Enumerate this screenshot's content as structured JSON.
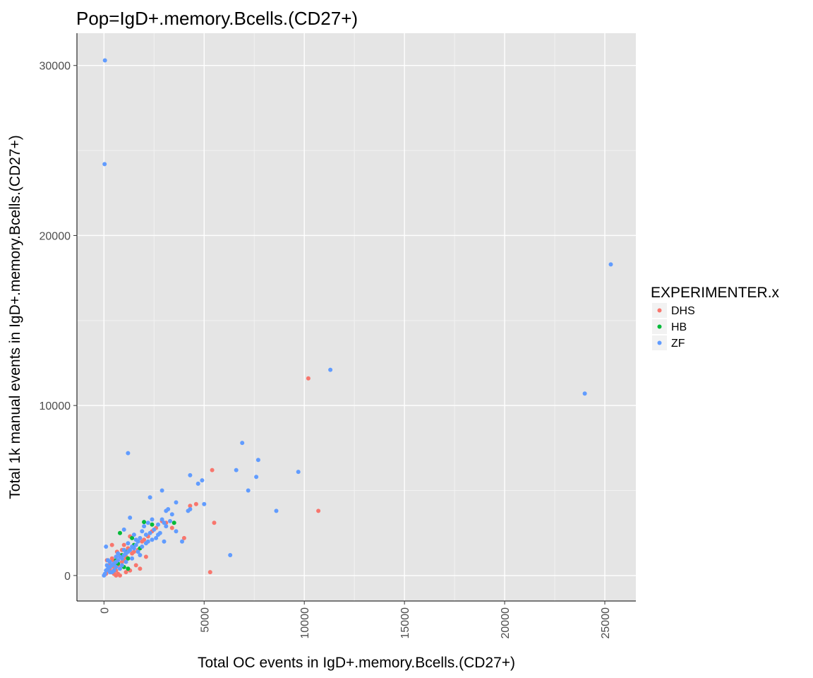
{
  "chart_data": {
    "type": "scatter",
    "title": "Pop=IgD+.memory.Bcells.(CD27+)",
    "xlabel": "Total OC events in IgD+.memory.Bcells.(CD27+)",
    "ylabel": "Total 1k manual events in IgD+.memory.Bcells.(CD27+)",
    "xlim": [
      -1350,
      26550
    ],
    "ylim": [
      -1500,
      31900
    ],
    "x_ticks": [
      0,
      5000,
      10000,
      15000,
      20000,
      25000
    ],
    "x_tick_labels": [
      "0",
      "5000",
      "10000",
      "15000",
      "20000",
      "25000"
    ],
    "y_ticks": [
      0,
      10000,
      20000,
      30000
    ],
    "y_tick_labels": [
      "0",
      "10000",
      "20000",
      "30000"
    ],
    "grid": true,
    "legend": {
      "title": "EXPERIMENTER.x",
      "placement": "right"
    },
    "series": [
      {
        "name": "DHS",
        "color": "#F8766D",
        "points": [
          [
            10200,
            11600
          ],
          [
            10700,
            3800
          ],
          [
            5400,
            6200
          ],
          [
            5500,
            3100
          ],
          [
            5300,
            200
          ],
          [
            4600,
            4200
          ],
          [
            4300,
            4100
          ],
          [
            4000,
            2200
          ],
          [
            3400,
            2800
          ],
          [
            3100,
            3100
          ],
          [
            2900,
            3200
          ],
          [
            2600,
            2800
          ],
          [
            2400,
            2600
          ],
          [
            2200,
            2300
          ],
          [
            2000,
            2100
          ],
          [
            1900,
            2000
          ],
          [
            1700,
            1500
          ],
          [
            1500,
            1400
          ],
          [
            1400,
            1300
          ],
          [
            1300,
            2300
          ],
          [
            1200,
            1600
          ],
          [
            1100,
            1100
          ],
          [
            1000,
            900
          ],
          [
            900,
            800
          ],
          [
            800,
            1200
          ],
          [
            700,
            600
          ],
          [
            650,
            1400
          ],
          [
            600,
            300
          ],
          [
            550,
            700
          ],
          [
            500,
            500
          ],
          [
            450,
            900
          ],
          [
            400,
            1800
          ],
          [
            350,
            200
          ],
          [
            300,
            400
          ],
          [
            250,
            600
          ],
          [
            200,
            300
          ],
          [
            150,
            900
          ],
          [
            100,
            100
          ],
          [
            800,
            0
          ],
          [
            700,
            100
          ],
          [
            600,
            0
          ],
          [
            500,
            100
          ],
          [
            1600,
            600
          ],
          [
            1800,
            400
          ],
          [
            2100,
            1100
          ],
          [
            1300,
            300
          ],
          [
            900,
            1500
          ],
          [
            1100,
            200
          ],
          [
            400,
            1000
          ],
          [
            1000,
            1800
          ]
        ]
      },
      {
        "name": "HB",
        "color": "#00BA38",
        "points": [
          [
            3500,
            3100
          ],
          [
            2000,
            3150
          ],
          [
            2400,
            3000
          ],
          [
            800,
            2500
          ],
          [
            1400,
            2200
          ],
          [
            1500,
            1800
          ],
          [
            1100,
            1400
          ],
          [
            1000,
            500
          ],
          [
            600,
            900
          ],
          [
            1200,
            1000
          ],
          [
            1800,
            1600
          ],
          [
            1200,
            400
          ],
          [
            900,
            1200
          ],
          [
            700,
            700
          ]
        ]
      },
      {
        "name": "ZF",
        "color": "#619CFF",
        "points": [
          [
            50,
            30300
          ],
          [
            30,
            24200
          ],
          [
            25300,
            18300
          ],
          [
            24000,
            10700
          ],
          [
            11300,
            12100
          ],
          [
            6900,
            7800
          ],
          [
            7700,
            6800
          ],
          [
            6600,
            6200
          ],
          [
            9700,
            6100
          ],
          [
            4300,
            5900
          ],
          [
            7600,
            5800
          ],
          [
            4900,
            5600
          ],
          [
            4700,
            5400
          ],
          [
            7200,
            5000
          ],
          [
            2900,
            5000
          ],
          [
            5000,
            4200
          ],
          [
            8600,
            3800
          ],
          [
            2300,
            4600
          ],
          [
            3600,
            4300
          ],
          [
            4300,
            3900
          ],
          [
            4200,
            3800
          ],
          [
            3200,
            3900
          ],
          [
            3400,
            3600
          ],
          [
            3100,
            3800
          ],
          [
            1200,
            7200
          ],
          [
            6300,
            1200
          ],
          [
            2900,
            3300
          ],
          [
            3300,
            3200
          ],
          [
            3000,
            3100
          ],
          [
            3100,
            2900
          ],
          [
            3600,
            2600
          ],
          [
            2700,
            3000
          ],
          [
            2400,
            3300
          ],
          [
            2200,
            3100
          ],
          [
            2000,
            2900
          ],
          [
            2500,
            2700
          ],
          [
            2300,
            2500
          ],
          [
            1900,
            2600
          ],
          [
            2700,
            2400
          ],
          [
            2600,
            2200
          ],
          [
            3000,
            2000
          ],
          [
            3900,
            2000
          ],
          [
            2100,
            1900
          ],
          [
            1800,
            2200
          ],
          [
            1700,
            2000
          ],
          [
            1600,
            1800
          ],
          [
            1500,
            1600
          ],
          [
            1400,
            1700
          ],
          [
            1300,
            1500
          ],
          [
            1200,
            1400
          ],
          [
            1100,
            1300
          ],
          [
            1000,
            1200
          ],
          [
            900,
            1000
          ],
          [
            800,
            1100
          ],
          [
            700,
            900
          ],
          [
            600,
            800
          ],
          [
            500,
            700
          ],
          [
            400,
            600
          ],
          [
            300,
            500
          ],
          [
            200,
            400
          ],
          [
            100,
            300
          ],
          [
            50,
            100
          ],
          [
            0,
            0
          ],
          [
            100,
            1700
          ],
          [
            1300,
            3400
          ],
          [
            1000,
            2700
          ],
          [
            1500,
            2400
          ],
          [
            1700,
            1400
          ],
          [
            1400,
            1000
          ],
          [
            1900,
            1700
          ],
          [
            1100,
            800
          ],
          [
            900,
            600
          ],
          [
            800,
            400
          ],
          [
            600,
            500
          ],
          [
            500,
            300
          ],
          [
            400,
            200
          ],
          [
            300,
            800
          ],
          [
            200,
            900
          ],
          [
            150,
            600
          ],
          [
            1200,
            1900
          ],
          [
            2100,
            2400
          ],
          [
            2200,
            2000
          ],
          [
            1800,
            1200
          ],
          [
            700,
            1300
          ],
          [
            1000,
            1500
          ],
          [
            2400,
            2100
          ],
          [
            2800,
            2500
          ],
          [
            600,
            1100
          ],
          [
            300,
            200
          ],
          [
            1600,
            2100
          ]
        ]
      }
    ]
  }
}
